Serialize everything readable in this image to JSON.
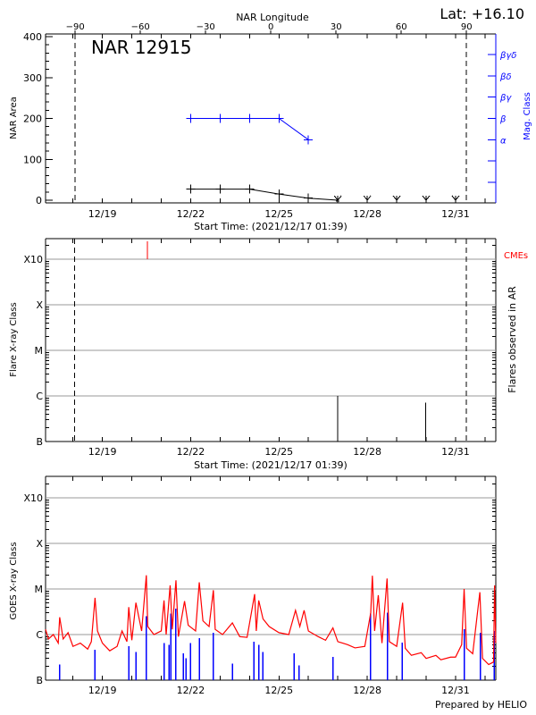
{
  "header": {
    "lat_label": "Lat: +16.10",
    "top_axis_title": "NAR Longitude"
  },
  "footer": "Prepared by HELIO",
  "colors": {
    "area": "#000000",
    "mag_class": "#0000ff",
    "cme": "#ff0000",
    "goes_long": "#ff0000",
    "goes_short": "#0000ff",
    "grid": "#999999"
  },
  "chart_data": [
    {
      "type": "line",
      "title": "NAR 12915",
      "xlabel": "Start Time: (2021/12/17 01:39)",
      "ylabel": "NAR Area",
      "y2label": "Mag. Class",
      "xlim": [
        "2021-12-17 01:39",
        "2022-01-01 08:50"
      ],
      "xticks": [
        "12/19",
        "12/22",
        "12/25",
        "12/28",
        "12/31"
      ],
      "ylim": [
        0,
        400
      ],
      "yticks": [
        0,
        100,
        200,
        300,
        400
      ],
      "top_axis": {
        "title": "NAR Longitude",
        "ticks": [
          -90,
          -60,
          -30,
          0,
          30,
          60,
          90
        ],
        "limb_lines": [
          -90,
          90
        ]
      },
      "mag_classes": [
        "α",
        "β",
        "βγ",
        "βδ",
        "βγδ"
      ],
      "series": [
        {
          "key": "area",
          "x": [
            "2021-12-22 00:00",
            "2021-12-23 00:00",
            "2021-12-24 00:00",
            "2021-12-25 00:00",
            "2021-12-26 00:00",
            "2021-12-27 00:00"
          ],
          "y": [
            27,
            27,
            27,
            15,
            5,
            0
          ]
        },
        {
          "key": "area_not_visible",
          "x": [
            "2021-12-28 00:00",
            "2021-12-29 00:00",
            "2021-12-30 00:00",
            "2021-12-31 00:00"
          ],
          "y": [
            0,
            0,
            0,
            0
          ]
        },
        {
          "key": "mag_class",
          "x": [
            "2021-12-22 00:00",
            "2021-12-23 00:00",
            "2021-12-24 00:00",
            "2021-12-25 00:00",
            "2021-12-26 00:00"
          ],
          "y": [
            "β",
            "β",
            "β",
            "β",
            "α"
          ]
        }
      ]
    },
    {
      "type": "bar",
      "xlabel": "Start Time: (2021/12/17 01:39)",
      "ylabel": "Flare X-ray Class",
      "y2label": "Flares observed in AR",
      "cme_label": "CMEs",
      "yscale": "log",
      "ylim": [
        1e-07,
        0.003
      ],
      "yticks": [
        {
          "label": "B",
          "value": 1e-07
        },
        {
          "label": "C",
          "value": 1e-06
        },
        {
          "label": "M",
          "value": 1e-05
        },
        {
          "label": "X",
          "value": 0.0001
        },
        {
          "label": "X10",
          "value": 0.001
        }
      ],
      "grid": true,
      "limb_times": [
        "2021-12-18 01:30",
        "2021-12-31 08:50"
      ],
      "flares": [
        {
          "time": "2021-12-27 00:00",
          "flux": 1e-06
        },
        {
          "time": "2021-12-29 23:30",
          "flux": 7.2e-07
        }
      ],
      "cmes": [
        "2021-12-20 12:40"
      ]
    },
    {
      "type": "line",
      "xlabel": "",
      "ylabel": "GOES X-ray Class",
      "yscale": "log",
      "ylim": [
        1e-07,
        0.003
      ],
      "yticks": [
        {
          "label": "B",
          "value": 1e-07
        },
        {
          "label": "C",
          "value": 1e-06
        },
        {
          "label": "M",
          "value": 1e-05
        },
        {
          "label": "X",
          "value": 0.0001
        },
        {
          "label": "X10",
          "value": 0.001
        }
      ],
      "grid": true,
      "series": [
        {
          "key": "goes_long",
          "points": [
            [
              "2021-12-17 01:39",
              1.3e-06
            ],
            [
              "2021-12-17 04:00",
              8e-07
            ],
            [
              "2021-12-17 08:00",
              1e-06
            ],
            [
              "2021-12-17 12:00",
              6.5e-07
            ],
            [
              "2021-12-17 13:10",
              2.4e-06
            ],
            [
              "2021-12-17 16:00",
              8e-07
            ],
            [
              "2021-12-17 20:00",
              1.1e-06
            ],
            [
              "2021-12-18 00:00",
              5.5e-07
            ],
            [
              "2021-12-18 06:00",
              6.5e-07
            ],
            [
              "2021-12-18 12:00",
              4.8e-07
            ],
            [
              "2021-12-18 15:00",
              7e-07
            ],
            [
              "2021-12-18 18:00",
              6.4e-06
            ],
            [
              "2021-12-18 20:00",
              1.2e-06
            ],
            [
              "2021-12-19 00:00",
              6.5e-07
            ],
            [
              "2021-12-19 06:00",
              4.4e-07
            ],
            [
              "2021-12-19 12:00",
              5.5e-07
            ],
            [
              "2021-12-19 16:00",
              1.2e-06
            ],
            [
              "2021-12-19 20:00",
              7e-07
            ],
            [
              "2021-12-19 21:30",
              4e-06
            ],
            [
              "2021-12-20 00:00",
              7.5e-07
            ],
            [
              "2021-12-20 03:20",
              5e-06
            ],
            [
              "2021-12-20 08:00",
              1.2e-06
            ],
            [
              "2021-12-20 11:50",
              2e-05
            ],
            [
              "2021-12-20 13:00",
              1.5e-06
            ],
            [
              "2021-12-20 18:00",
              1e-06
            ],
            [
              "2021-12-21 00:00",
              1.2e-06
            ],
            [
              "2021-12-21 02:15",
              5.6e-06
            ],
            [
              "2021-12-21 04:00",
              1e-06
            ],
            [
              "2021-12-21 07:15",
              1.2e-05
            ],
            [
              "2021-12-21 09:00",
              1.3e-06
            ],
            [
              "2021-12-21 12:00",
              1.55e-05
            ],
            [
              "2021-12-21 14:00",
              9e-07
            ],
            [
              "2021-12-21 19:00",
              5.4e-06
            ],
            [
              "2021-12-21 22:00",
              1.6e-06
            ],
            [
              "2021-12-22 04:00",
              1.2e-06
            ],
            [
              "2021-12-22 07:00",
              1.4e-05
            ],
            [
              "2021-12-22 10:00",
              2e-06
            ],
            [
              "2021-12-22 15:00",
              1.5e-06
            ],
            [
              "2021-12-22 18:30",
              9.4e-06
            ],
            [
              "2021-12-22 20:00",
              1.3e-06
            ],
            [
              "2021-12-23 02:00",
              1e-06
            ],
            [
              "2021-12-23 10:00",
              1.8e-06
            ],
            [
              "2021-12-23 16:00",
              9e-07
            ],
            [
              "2021-12-23 22:00",
              8.7e-07
            ],
            [
              "2021-12-24 04:10",
              7.7e-06
            ],
            [
              "2021-12-24 05:30",
              1.2e-06
            ],
            [
              "2021-12-24 07:30",
              5.6e-06
            ],
            [
              "2021-12-24 11:00",
              2.2e-06
            ],
            [
              "2021-12-24 16:00",
              1.5e-06
            ],
            [
              "2021-12-25 00:00",
              1.1e-06
            ],
            [
              "2021-12-25 08:00",
              1e-06
            ],
            [
              "2021-12-25 13:30",
              3.4e-06
            ],
            [
              "2021-12-25 17:00",
              1.5e-06
            ],
            [
              "2021-12-25 20:30",
              3.4e-06
            ],
            [
              "2021-12-26 00:00",
              1.2e-06
            ],
            [
              "2021-12-26 08:00",
              9e-07
            ],
            [
              "2021-12-26 14:00",
              7.5e-07
            ],
            [
              "2021-12-26 20:00",
              1.4e-06
            ],
            [
              "2021-12-27 00:00",
              7e-07
            ],
            [
              "2021-12-27 08:00",
              6e-07
            ],
            [
              "2021-12-27 14:00",
              5.1e-07
            ],
            [
              "2021-12-27 22:00",
              5.5e-07
            ],
            [
              "2021-12-28 02:50",
              3e-06
            ],
            [
              "2021-12-28 04:10",
              1.95e-05
            ],
            [
              "2021-12-28 06:00",
              1.2e-06
            ],
            [
              "2021-12-28 09:00",
              7.3e-06
            ],
            [
              "2021-12-28 12:00",
              6.5e-07
            ],
            [
              "2021-12-28 16:10",
              1.7e-05
            ],
            [
              "2021-12-28 18:00",
              7e-07
            ],
            [
              "2021-12-29 00:00",
              5.5e-07
            ],
            [
              "2021-12-29 04:50",
              5e-06
            ],
            [
              "2021-12-29 07:00",
              5e-07
            ],
            [
              "2021-12-29 12:00",
              3.5e-07
            ],
            [
              "2021-12-29 20:00",
              4e-07
            ],
            [
              "2021-12-30 00:00",
              3e-07
            ],
            [
              "2021-12-30 08:00",
              3.5e-07
            ],
            [
              "2021-12-30 12:00",
              2.8e-07
            ],
            [
              "2021-12-30 20:00",
              3.2e-07
            ],
            [
              "2021-12-31 00:00",
              3.2e-07
            ],
            [
              "2021-12-31 05:00",
              6e-07
            ],
            [
              "2021-12-31 07:00",
              1e-05
            ],
            [
              "2021-12-31 09:00",
              5e-07
            ],
            [
              "2021-12-31 14:00",
              3.8e-07
            ],
            [
              "2021-12-31 19:50",
              8.5e-06
            ],
            [
              "2021-12-31 22:00",
              3e-07
            ],
            [
              "2022-01-01 03:00",
              2.2e-07
            ],
            [
              "2022-01-01 07:00",
              2.5e-07
            ],
            [
              "2022-01-01 07:50",
              1.2e-05
            ],
            [
              "2022-01-01 08:50",
              6.5e-07
            ]
          ]
        },
        {
          "key": "goes_short",
          "points": [
            [
              "2021-12-17 13:10",
              2.2e-07
            ],
            [
              "2021-12-18 18:00",
              4.6e-07
            ],
            [
              "2021-12-19 21:30",
              5.5e-07
            ],
            [
              "2021-12-20 03:20",
              4.1e-07
            ],
            [
              "2021-12-20 11:50",
              2.5e-06
            ],
            [
              "2021-12-21 02:15",
              6.5e-07
            ],
            [
              "2021-12-21 06:25",
              6e-07
            ],
            [
              "2021-12-21 08:00",
              2.9e-06
            ],
            [
              "2021-12-21 12:00",
              3.7e-06
            ],
            [
              "2021-12-21 18:10",
              3.9e-07
            ],
            [
              "2021-12-21 20:20",
              3e-07
            ],
            [
              "2021-12-22 00:00",
              6.5e-07
            ],
            [
              "2021-12-22 07:00",
              8.3e-07
            ],
            [
              "2021-12-22 18:30",
              1.1e-06
            ],
            [
              "2021-12-23 10:00",
              2.3e-07
            ],
            [
              "2021-12-24 03:30",
              7e-07
            ],
            [
              "2021-12-24 07:30",
              6e-07
            ],
            [
              "2021-12-24 11:00",
              4.1e-07
            ],
            [
              "2021-12-25 12:30",
              3.9e-07
            ],
            [
              "2021-12-25 16:30",
              2.1e-07
            ],
            [
              "2021-12-26 20:00",
              3.2e-07
            ],
            [
              "2021-12-28 02:50",
              2.9e-06
            ],
            [
              "2021-12-28 16:30",
              3e-06
            ],
            [
              "2021-12-29 04:30",
              6.6e-07
            ],
            [
              "2021-12-31 07:00",
              1.3e-06
            ],
            [
              "2021-12-31 20:10",
              1.1e-06
            ],
            [
              "2022-01-01 07:40",
              1.2e-06
            ]
          ]
        }
      ]
    }
  ]
}
